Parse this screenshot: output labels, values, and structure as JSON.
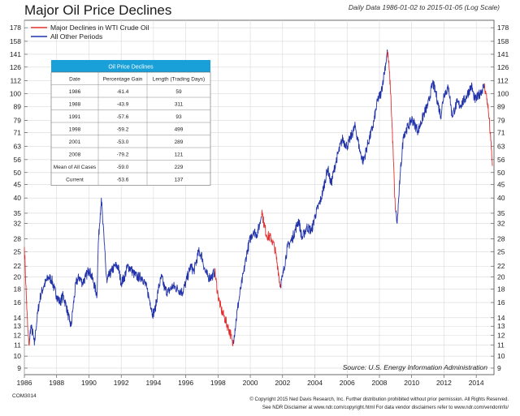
{
  "chart_data": {
    "type": "line",
    "title": "Major Oil Price Declines",
    "subtitle": "Daily Data 1986-01-02 to 2015-01-05 (Log Scale)",
    "y_scale": "log",
    "ylim": [
      8.5,
      190
    ],
    "xlim": [
      1986.0,
      2015.1
    ],
    "y_ticks": [
      9,
      10,
      11,
      12,
      13,
      14,
      16,
      18,
      20,
      22,
      25,
      28,
      32,
      35,
      40,
      45,
      50,
      56,
      63,
      71,
      79,
      89,
      100,
      112,
      126,
      141,
      158,
      178
    ],
    "x_ticks": [
      "1986",
      "1988",
      "1990",
      "1992",
      "1994",
      "1996",
      "1998",
      "2000",
      "2002",
      "2004",
      "2006",
      "2008",
      "2010",
      "2012",
      "2014"
    ],
    "legend": [
      {
        "label": "Major Declines in WTI Crude Oil",
        "color": "#e03030"
      },
      {
        "label": "All Other Periods",
        "color": "#2233aa"
      }
    ],
    "series": [
      {
        "name": "WTI Crude Oil",
        "points": [
          [
            1986.0,
            26
          ],
          [
            1986.05,
            22
          ],
          [
            1986.12,
            17
          ],
          [
            1986.2,
            13
          ],
          [
            1986.28,
            11
          ],
          [
            1986.32,
            11.5
          ],
          [
            1986.4,
            13
          ],
          [
            1986.55,
            12
          ],
          [
            1986.62,
            11
          ],
          [
            1986.7,
            12.5
          ],
          [
            1986.85,
            15
          ],
          [
            1987.0,
            17
          ],
          [
            1987.2,
            18.5
          ],
          [
            1987.5,
            20
          ],
          [
            1987.7,
            19.5
          ],
          [
            1987.85,
            18
          ],
          [
            1988.0,
            17
          ],
          [
            1988.2,
            16
          ],
          [
            1988.4,
            17
          ],
          [
            1988.6,
            15.5
          ],
          [
            1988.8,
            13.5
          ],
          [
            1988.9,
            13
          ],
          [
            1989.0,
            15
          ],
          [
            1989.2,
            19
          ],
          [
            1989.4,
            20
          ],
          [
            1989.6,
            19
          ],
          [
            1989.8,
            20
          ],
          [
            1990.0,
            21.5
          ],
          [
            1990.3,
            19
          ],
          [
            1990.5,
            17
          ],
          [
            1990.58,
            27
          ],
          [
            1990.7,
            35
          ],
          [
            1990.77,
            40
          ],
          [
            1990.85,
            33
          ],
          [
            1990.95,
            27
          ],
          [
            1991.0,
            25
          ],
          [
            1991.05,
            21
          ],
          [
            1991.12,
            19
          ],
          [
            1991.2,
            20
          ],
          [
            1991.4,
            21
          ],
          [
            1991.6,
            22
          ],
          [
            1991.8,
            22
          ],
          [
            1992.0,
            19
          ],
          [
            1992.2,
            20
          ],
          [
            1992.4,
            22
          ],
          [
            1992.6,
            21.5
          ],
          [
            1992.8,
            20.5
          ],
          [
            1993.0,
            20
          ],
          [
            1993.3,
            20
          ],
          [
            1993.6,
            18
          ],
          [
            1993.8,
            16
          ],
          [
            1993.95,
            14.5
          ],
          [
            1994.1,
            15
          ],
          [
            1994.3,
            18
          ],
          [
            1994.5,
            20
          ],
          [
            1994.7,
            18
          ],
          [
            1994.9,
            17.5
          ],
          [
            1995.2,
            18.5
          ],
          [
            1995.5,
            18
          ],
          [
            1995.8,
            17.5
          ],
          [
            1996.0,
            19
          ],
          [
            1996.3,
            22
          ],
          [
            1996.5,
            21
          ],
          [
            1996.8,
            25
          ],
          [
            1997.0,
            24
          ],
          [
            1997.2,
            21
          ],
          [
            1997.4,
            20
          ],
          [
            1997.6,
            20
          ],
          [
            1997.8,
            21
          ],
          [
            1998.0,
            17
          ],
          [
            1998.2,
            15
          ],
          [
            1998.4,
            14
          ],
          [
            1998.6,
            13
          ],
          [
            1998.8,
            12
          ],
          [
            1998.9,
            11
          ],
          [
            1999.0,
            12
          ],
          [
            1999.2,
            15
          ],
          [
            1999.4,
            18
          ],
          [
            1999.6,
            21
          ],
          [
            1999.8,
            25
          ],
          [
            2000.0,
            28
          ],
          [
            2000.2,
            30
          ],
          [
            2000.4,
            29
          ],
          [
            2000.6,
            32
          ],
          [
            2000.72,
            36
          ],
          [
            2000.8,
            33
          ],
          [
            2001.0,
            29
          ],
          [
            2001.3,
            28
          ],
          [
            2001.5,
            26
          ],
          [
            2001.7,
            22
          ],
          [
            2001.85,
            18.5
          ],
          [
            2002.0,
            20
          ],
          [
            2002.3,
            26
          ],
          [
            2002.6,
            28
          ],
          [
            2003.0,
            33
          ],
          [
            2003.2,
            28
          ],
          [
            2003.5,
            31
          ],
          [
            2003.8,
            30
          ],
          [
            2004.0,
            34
          ],
          [
            2004.4,
            40
          ],
          [
            2004.8,
            52
          ],
          [
            2005.0,
            45
          ],
          [
            2005.3,
            55
          ],
          [
            2005.7,
            67
          ],
          [
            2006.0,
            63
          ],
          [
            2006.5,
            75
          ],
          [
            2006.8,
            60
          ],
          [
            2007.0,
            55
          ],
          [
            2007.3,
            65
          ],
          [
            2007.6,
            75
          ],
          [
            2007.9,
            95
          ],
          [
            2008.1,
            100
          ],
          [
            2008.3,
            120
          ],
          [
            2008.5,
            145
          ],
          [
            2008.6,
            125
          ],
          [
            2008.7,
            100
          ],
          [
            2008.85,
            60
          ],
          [
            2008.95,
            40
          ],
          [
            2009.0,
            36
          ],
          [
            2009.1,
            32
          ],
          [
            2009.3,
            50
          ],
          [
            2009.5,
            70
          ],
          [
            2009.8,
            75
          ],
          [
            2010.0,
            80
          ],
          [
            2010.4,
            72
          ],
          [
            2010.8,
            85
          ],
          [
            2011.0,
            90
          ],
          [
            2011.3,
            110
          ],
          [
            2011.5,
            100
          ],
          [
            2011.8,
            82
          ],
          [
            2012.0,
            100
          ],
          [
            2012.3,
            105
          ],
          [
            2012.5,
            82
          ],
          [
            2012.8,
            92
          ],
          [
            2013.0,
            90
          ],
          [
            2013.3,
            95
          ],
          [
            2013.7,
            107
          ],
          [
            2013.9,
            95
          ],
          [
            2014.0,
            95
          ],
          [
            2014.3,
            102
          ],
          [
            2014.5,
            107
          ],
          [
            2014.6,
            100
          ],
          [
            2014.7,
            92
          ],
          [
            2014.8,
            80
          ],
          [
            2014.9,
            66
          ],
          [
            2015.0,
            53
          ]
        ]
      }
    ],
    "declines": [
      [
        1986.0,
        1986.3
      ],
      [
        1997.8,
        1998.95
      ],
      [
        2000.7,
        2001.88
      ],
      [
        2008.5,
        2009.0
      ],
      [
        2014.5,
        2015.05
      ]
    ],
    "table": {
      "title": "Oil Price Declines",
      "headers": [
        "Date",
        "Percentage Gain",
        "Length (Trading Days)"
      ],
      "rows": [
        [
          "1986",
          "-61.4",
          "59"
        ],
        [
          "1988",
          "-43.9",
          "311"
        ],
        [
          "1991",
          "-57.6",
          "93"
        ],
        [
          "1998",
          "-59.2",
          "499"
        ],
        [
          "2001",
          "-53.0",
          "289"
        ],
        [
          "2008",
          "-79.2",
          "121"
        ],
        [
          "Mean of All Cases",
          "-59.0",
          "229"
        ],
        [
          "Current",
          "-53.6",
          "137"
        ]
      ]
    },
    "source": "Source:  U.S. Energy Information Administration"
  },
  "footer": {
    "code": "COM3014",
    "copyright": "© Copyright 2015 Ned Davis Research, Inc. Further distribution prohibited without prior permission. All Rights Reserved.",
    "disclaimer": "See NDR Disclaimer at www.ndr.com/copyright.html    For data vendor disclaimers refer to www.ndr.com/vendorinfo/"
  }
}
